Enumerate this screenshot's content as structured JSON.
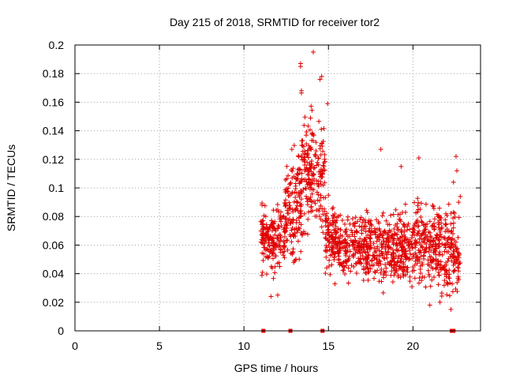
{
  "chart_data": {
    "type": "scatter",
    "title": "Day 215 of 2018, SRMTID for receiver tor2",
    "xlabel": "GPS time / hours",
    "ylabel": "SRMTID / TECUs",
    "xlim": [
      0,
      24
    ],
    "ylim": [
      0,
      0.2
    ],
    "x_ticks": [
      0,
      5,
      10,
      15,
      20
    ],
    "x_tick_labels": [
      "0",
      "5",
      "10",
      "15",
      "20"
    ],
    "y_ticks": [
      0,
      0.02,
      0.04,
      0.06,
      0.08,
      0.1,
      0.12,
      0.14,
      0.16,
      0.18,
      0.2
    ],
    "y_tick_labels": [
      "0",
      "0.02",
      "0.04",
      "0.06",
      "0.08",
      "0.1",
      "0.12",
      "0.14",
      "0.16",
      "0.18",
      "0.2"
    ],
    "grid": true,
    "marker": "plus",
    "color": "#e00000",
    "series": [
      {
        "name": "SRMTID",
        "segments": [
          {
            "x_start": 11.0,
            "x_end": 12.4,
            "y_low": 0.03,
            "y_high": 0.1,
            "center": 0.065,
            "count": 180
          },
          {
            "x_start": 12.4,
            "x_end": 13.4,
            "y_low": 0.04,
            "y_high": 0.16,
            "center": 0.085,
            "count": 150
          },
          {
            "x_start": 13.4,
            "x_end": 14.8,
            "y_low": 0.06,
            "y_high": 0.19,
            "center": 0.11,
            "count": 200
          },
          {
            "x_start": 14.8,
            "x_end": 15.6,
            "y_low": 0.03,
            "y_high": 0.1,
            "center": 0.065,
            "count": 110
          },
          {
            "x_start": 15.6,
            "x_end": 19.0,
            "y_low": 0.025,
            "y_high": 0.1,
            "center": 0.058,
            "count": 420
          },
          {
            "x_start": 19.0,
            "x_end": 21.5,
            "y_low": 0.02,
            "y_high": 0.11,
            "center": 0.06,
            "count": 320
          },
          {
            "x_start": 21.5,
            "x_end": 22.8,
            "y_low": 0.02,
            "y_high": 0.12,
            "center": 0.055,
            "count": 170
          }
        ],
        "highlights": [
          {
            "x": 14.1,
            "y": 0.195
          },
          {
            "x": 13.35,
            "y": 0.185
          },
          {
            "x": 13.35,
            "y": 0.187
          },
          {
            "x": 14.5,
            "y": 0.176
          },
          {
            "x": 14.6,
            "y": 0.178
          },
          {
            "x": 14.95,
            "y": 0.159
          },
          {
            "x": 13.4,
            "y": 0.168
          },
          {
            "x": 18.1,
            "y": 0.127
          },
          {
            "x": 22.55,
            "y": 0.122
          },
          {
            "x": 20.35,
            "y": 0.121
          },
          {
            "x": 22.6,
            "y": 0.112
          },
          {
            "x": 19.3,
            "y": 0.115
          },
          {
            "x": 22.4,
            "y": 0.104
          },
          {
            "x": 22.8,
            "y": 0.094
          },
          {
            "x": 11.6,
            "y": 0.024
          },
          {
            "x": 12.0,
            "y": 0.025
          },
          {
            "x": 21.0,
            "y": 0.018
          },
          {
            "x": 22.25,
            "y": 0.015
          },
          {
            "x": 21.6,
            "y": 0.02
          }
        ]
      }
    ],
    "baseline_markers_x": [
      11.15,
      12.75,
      14.65,
      22.3,
      22.4
    ]
  }
}
